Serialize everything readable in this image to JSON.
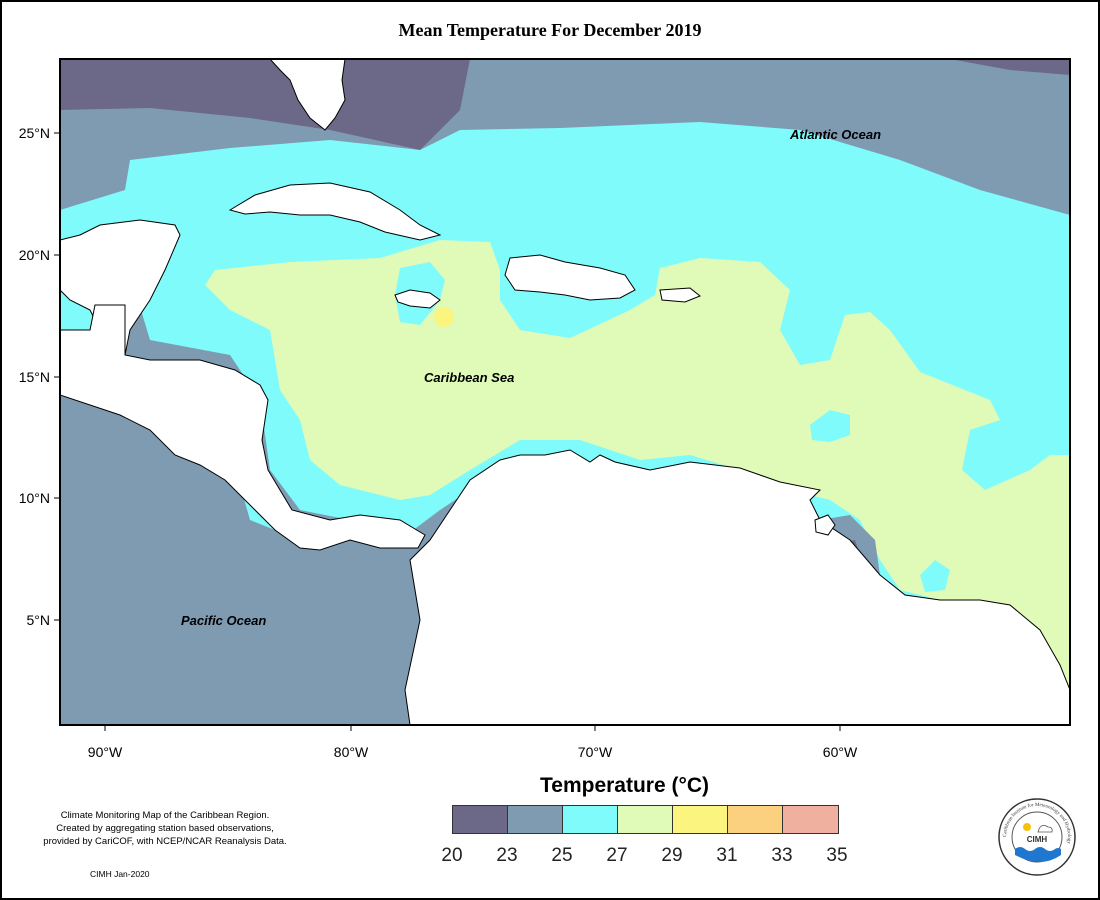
{
  "title": "Mean Temperature For December 2019",
  "ocean_labels": {
    "atlantic": "Atlantic Ocean",
    "caribbean": "Caribbean Sea",
    "pacific": "Pacific Ocean"
  },
  "axes": {
    "latitude_ticks": [
      "25°N",
      "20°N",
      "15°N",
      "10°N",
      "5°N"
    ],
    "longitude_ticks": [
      "90°W",
      "80°W",
      "70°W",
      "60°W"
    ]
  },
  "legend": {
    "title": "Temperature (°C)",
    "bins": [
      {
        "range": "20–23",
        "color": "#6b6888"
      },
      {
        "range": "23–25",
        "color": "#7f9bb2"
      },
      {
        "range": "25–27",
        "color": "#7ffbfb"
      },
      {
        "range": "27–29",
        "color": "#e0fbb8"
      },
      {
        "range": "29–31",
        "color": "#fbf47f"
      },
      {
        "range": "31–33",
        "color": "#fbd07f"
      },
      {
        "range": "33–35",
        "color": "#f0b0a0"
      }
    ],
    "tick_labels": [
      "20",
      "23",
      "25",
      "27",
      "29",
      "31",
      "33",
      "35"
    ]
  },
  "credit_lines": [
    "Climate Monitoring Map of the Caribbean Region.",
    "Created by aggregating station based observations,",
    "provided by CariCOF, with NCEP/NCAR Reanalysis Data."
  ],
  "stamp": "CIMH Jan-2020",
  "logo": {
    "text": "CIMH",
    "ring_text": "Caribbean Institute for Meteorology and Hydrology"
  },
  "colors": {
    "very_cool": "#6b6888",
    "cool": "#7f9bb2",
    "mild": "#7ffbfb",
    "warm": "#e0fbb8",
    "hot": "#fbf47f",
    "land": "#ffffff",
    "border": "#000000"
  }
}
